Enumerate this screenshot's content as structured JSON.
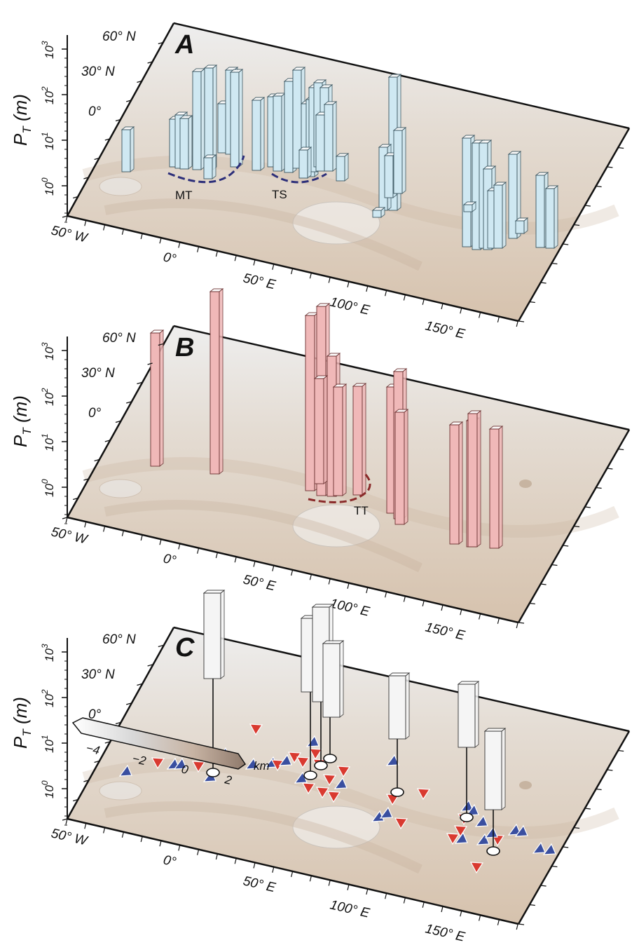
{
  "figure": {
    "panels": [
      {
        "letter": "A",
        "bar_fill": "#cfe8f2",
        "bar_stroke": "#3a5560",
        "regions": [
          {
            "label": "MT",
            "color": "#2d2f7a"
          },
          {
            "label": "TS",
            "color": "#2d2f7a"
          }
        ]
      },
      {
        "letter": "B",
        "bar_fill": "#f0b8b8",
        "bar_stroke": "#6a3030",
        "regions": [
          {
            "label": "TT",
            "color": "#8a2a2a"
          }
        ]
      },
      {
        "letter": "C",
        "bar_fill": "#f5f5f5",
        "bar_stroke": "#333333",
        "regions": []
      }
    ],
    "y_axis": {
      "label_main": "P",
      "label_sub": "T",
      "label_unit": "(m)",
      "ticks": [
        {
          "base": "10",
          "exp": "0"
        },
        {
          "base": "10",
          "exp": "1"
        },
        {
          "base": "10",
          "exp": "2"
        },
        {
          "base": "10",
          "exp": "3"
        }
      ]
    },
    "lat_labels": [
      "60° N",
      "30° N",
      "0°"
    ],
    "lon_labels": [
      "50° W",
      "0°",
      "50° E",
      "100° E",
      "150° E"
    ],
    "colorbar": {
      "ticks": [
        "−4",
        "−2",
        "0",
        "2"
      ],
      "unit": "km",
      "colors": [
        "#ffffff",
        "#d8d8d8",
        "#c7b3a3",
        "#8f7a6c"
      ]
    },
    "triangle_colors": {
      "red": "#d93a30",
      "blue": "#3a4fa0"
    }
  }
}
